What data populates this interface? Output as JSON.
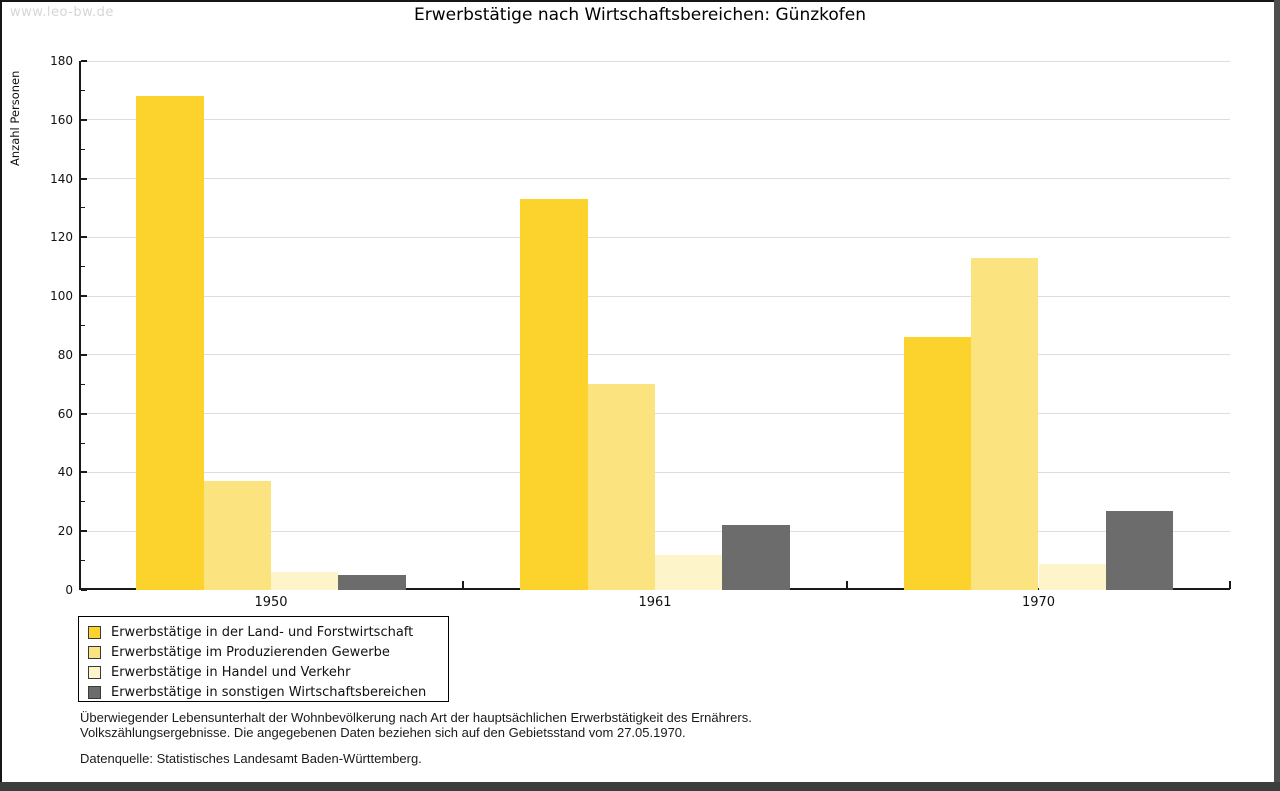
{
  "watermark": "www.leo-bw.de",
  "title": "Erwerbstätige nach Wirtschaftsbereichen: Günzkofen",
  "chart_data": {
    "type": "bar",
    "categories": [
      "1950",
      "1961",
      "1970"
    ],
    "series": [
      {
        "name": "Erwerbstätige in der Land- und Forstwirtschaft",
        "color": "#FCD32C",
        "values": [
          168,
          133,
          86
        ]
      },
      {
        "name": "Erwerbstätige im Produzierenden Gewerbe",
        "color": "#FBE480",
        "values": [
          37,
          70,
          113
        ]
      },
      {
        "name": "Erwerbstätige in Handel und Verkehr",
        "color": "#FDF5C9",
        "values": [
          6,
          12,
          9
        ]
      },
      {
        "name": "Erwerbstätige in sonstigen Wirtschaftsbereichen",
        "color": "#6C6C6C",
        "values": [
          5,
          22,
          27
        ]
      }
    ],
    "title": "Erwerbstätige nach Wirtschaftsbereichen: Günzkofen",
    "xlabel": "",
    "ylabel": "Anzahl Personen",
    "ylim": [
      0,
      180
    ],
    "ytick_step": 20,
    "ytick_minor_step": 10,
    "grid": true,
    "legend_position": "bottom-left"
  },
  "footer": {
    "line1": "Überwiegender Lebensunterhalt der Wohnbevölkerung nach Art der hauptsächlichen Erwerbstätigkeit des Ernährers.",
    "line2": "Volkszählungsergebnisse. Die angegebenen Daten beziehen sich auf den Gebietsstand vom 27.05.1970.",
    "source": "Datenquelle: Statistisches Landesamt Baden-Württemberg."
  }
}
